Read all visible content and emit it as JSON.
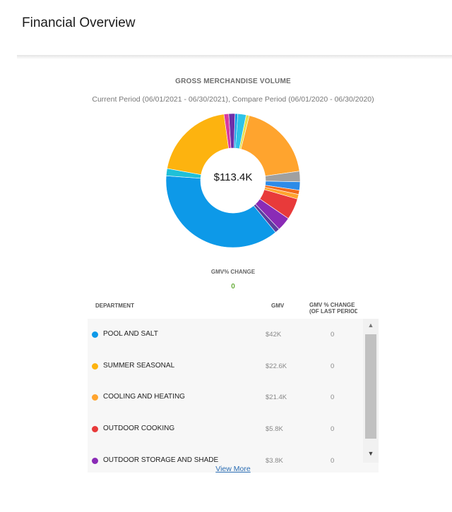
{
  "page": {
    "title": "Financial Overview"
  },
  "chart_data": {
    "type": "pie",
    "title": "GROSS MERCHANDISE VOLUME",
    "subtitle": "Current Period (06/01/2021 - 06/30/2021), Compare Period (06/01/2020 - 06/30/2020)",
    "center_label": "$113.4K",
    "categories": [
      "POOL AND SALT",
      "SUMMER SEASONAL",
      "COOLING AND HEATING",
      "OUTDOOR COOKING",
      "OUTDOOR STORAGE AND SHADE"
    ],
    "values": [
      42,
      22.6,
      21.4,
      5.8,
      3.8
    ],
    "value_labels": [
      "$42K",
      "$22.6K",
      "$21.4K",
      "$5.8K",
      "$3.8K"
    ],
    "other_value": 17.8,
    "colors": [
      "#0d99e8",
      "#fdb30f",
      "#ffa42e",
      "#e83a3a",
      "#8a2bb6"
    ],
    "other_colors": [
      "#2ec3e8",
      "#6e2fa8",
      "#d83aa0",
      "#f26a1b",
      "#a0a0a0",
      "#2d8be8",
      "#5a3e9e",
      "#1fc0d8",
      "#e8e04a",
      "#ffa42e",
      "#0d99e8"
    ],
    "legend_position": "table-below"
  },
  "change": {
    "label": "GMV% CHANGE",
    "value": "0"
  },
  "table": {
    "headers": {
      "department": "DEPARTMENT",
      "gmv": "GMV",
      "change": "GMV % CHANGE (OF LAST PERIOD)"
    },
    "rows": [
      {
        "department": "POOL AND SALT",
        "gmv": "$42K",
        "change": "0",
        "color": "#0d99e8"
      },
      {
        "department": "SUMMER SEASONAL",
        "gmv": "$22.6K",
        "change": "0",
        "color": "#fdb30f"
      },
      {
        "department": "COOLING AND HEATING",
        "gmv": "$21.4K",
        "change": "0",
        "color": "#ffa42e"
      },
      {
        "department": "OUTDOOR COOKING",
        "gmv": "$5.8K",
        "change": "0",
        "color": "#e83a3a"
      },
      {
        "department": "OUTDOOR STORAGE AND SHADE",
        "gmv": "$3.8K",
        "change": "0",
        "color": "#8a2bb6"
      }
    ]
  },
  "view_more": {
    "label": "View More"
  },
  "icons": {
    "scroll_up": "triangle-up-icon",
    "scroll_down": "triangle-down-icon"
  }
}
